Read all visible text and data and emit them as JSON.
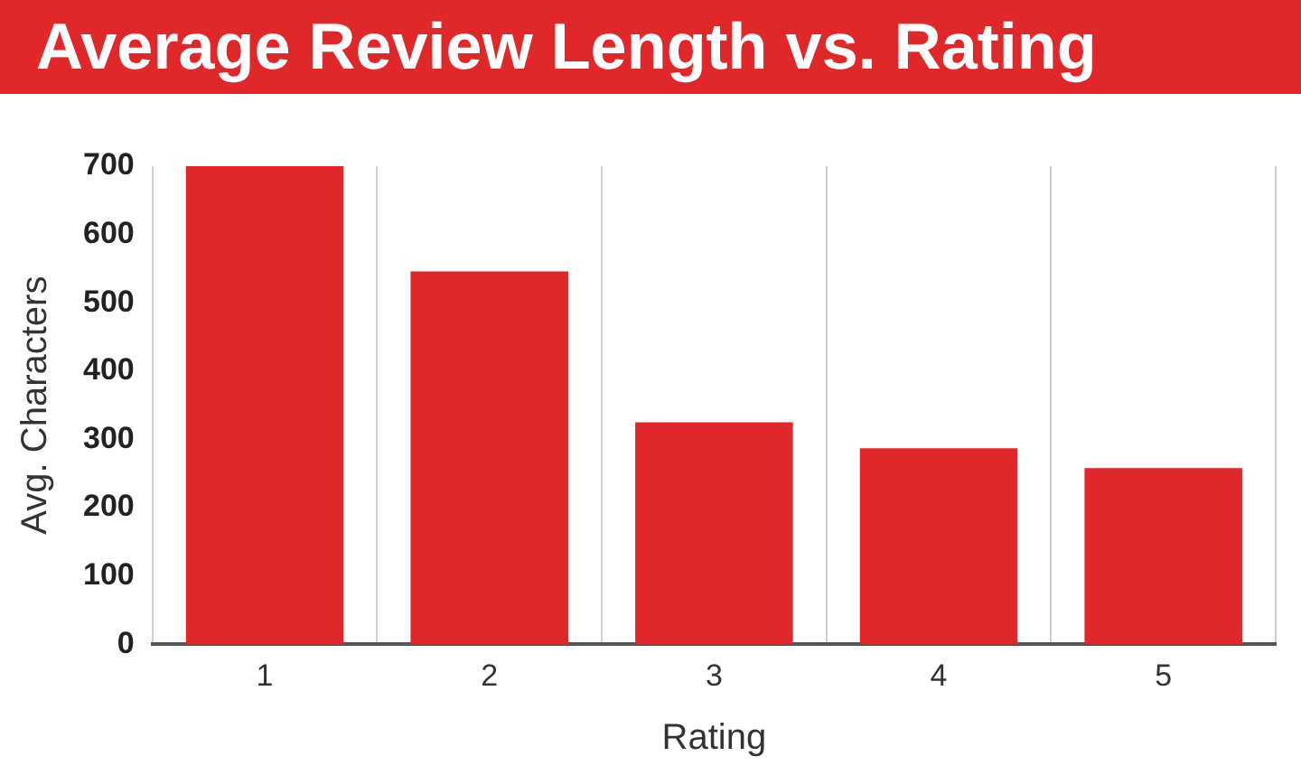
{
  "chart_data": {
    "type": "bar",
    "title": "Average Review Length vs. Rating",
    "xlabel": "Rating",
    "ylabel": "Avg. Characters",
    "categories": [
      "1",
      "2",
      "3",
      "4",
      "5"
    ],
    "values": [
      700,
      546,
      325,
      287,
      258
    ],
    "color": "#e0282a",
    "ylim": [
      0,
      700
    ],
    "yticks": [
      0,
      100,
      200,
      300,
      400,
      500,
      600,
      700
    ],
    "grid": "x"
  }
}
